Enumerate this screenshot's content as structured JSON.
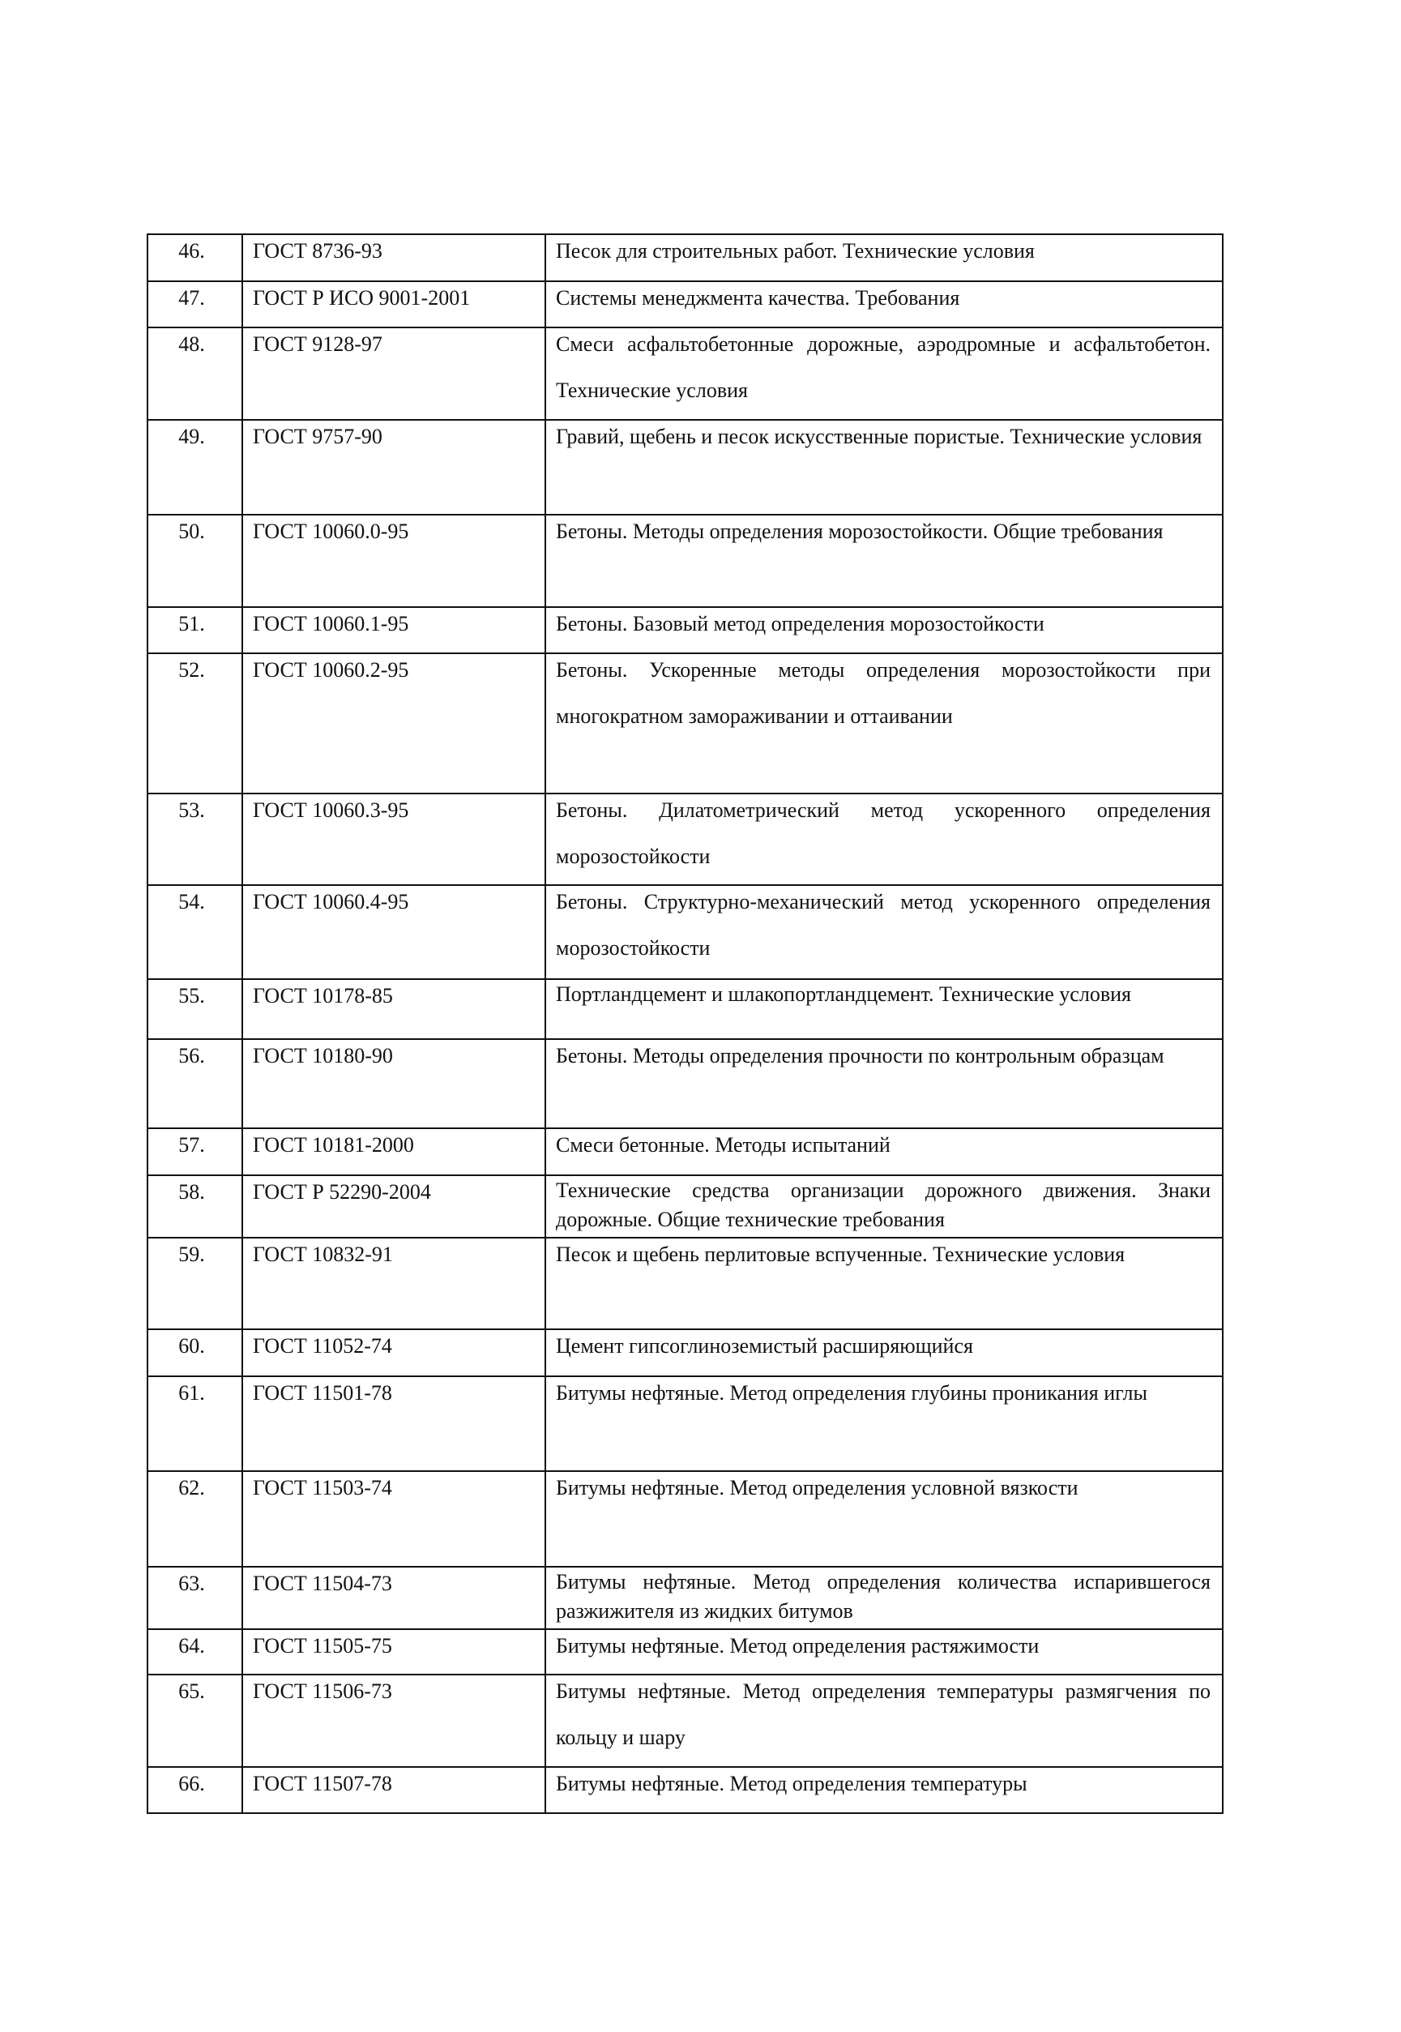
{
  "table": {
    "rows": [
      {
        "num": "46.",
        "code": "ГОСТ 8736-93",
        "desc": "Песок для строительных работ. Технические условия"
      },
      {
        "num": "47.",
        "code": "ГОСТ Р ИСО 9001-2001",
        "desc": "Системы менеджмента качества. Требования"
      },
      {
        "num": "48.",
        "code": "ГОСТ 9128-97",
        "desc": "Смеси асфальтобетонные дорожные, аэродромные и асфальтобетон. Технические условия"
      },
      {
        "num": "49.",
        "code": "ГОСТ 9757-90",
        "desc": "Гравий, щебень и песок искусственные пористые. Технические условия"
      },
      {
        "num": "50.",
        "code": "ГОСТ 10060.0-95",
        "desc": "Бетоны. Методы определения морозостойкости. Общие требования"
      },
      {
        "num": "51.",
        "code": "ГОСТ 10060.1-95",
        "desc": "Бетоны. Базовый метод определения морозостойкости"
      },
      {
        "num": "52.",
        "code": "ГОСТ 10060.2-95",
        "desc": "Бетоны. Ускоренные методы определения морозостойкости при многократном замораживании и оттаивании"
      },
      {
        "num": "53.",
        "code": "ГОСТ 10060.3-95",
        "desc": "Бетоны. Дилатометрический метод ускоренного определения морозостойкости"
      },
      {
        "num": "54.",
        "code": "ГОСТ 10060.4-95",
        "desc": "Бетоны. Структурно-механический метод ускоренного определения морозостойкости"
      },
      {
        "num": "55.",
        "code": "ГОСТ 10178-85",
        "desc": "Портландцемент и шлакопортландцемент. Технические условия"
      },
      {
        "num": "56.",
        "code": "ГОСТ 10180-90",
        "desc": "Бетоны. Методы определения прочности по контрольным образцам"
      },
      {
        "num": "57.",
        "code": "ГОСТ 10181-2000",
        "desc": "Смеси бетонные. Методы испытаний"
      },
      {
        "num": "58.",
        "code": "ГОСТ Р 52290-2004",
        "desc": "Технические средства организации дорожного движения. Знаки дорожные. Общие технические требования"
      },
      {
        "num": "59.",
        "code": "ГОСТ 10832-91",
        "desc": "Песок и щебень перлитовые вспученные. Технические условия"
      },
      {
        "num": "60.",
        "code": "ГОСТ 11052-74",
        "desc": "Цемент гипсоглиноземистый расширяющийся"
      },
      {
        "num": "61.",
        "code": "ГОСТ 11501-78",
        "desc": "Битумы нефтяные. Метод определения глубины проникания иглы"
      },
      {
        "num": "62.",
        "code": "ГОСТ 11503-74",
        "desc": "Битумы нефтяные. Метод определения условной вязкости"
      },
      {
        "num": "63.",
        "code": "ГОСТ 11504-73",
        "desc": "Битумы нефтяные. Метод определения количества испарившегося разжижителя из жидких битумов"
      },
      {
        "num": "64.",
        "code": "ГОСТ 11505-75",
        "desc": "Битумы нефтяные. Метод определения растяжимости"
      },
      {
        "num": "65.",
        "code": "ГОСТ 11506-73",
        "desc": "Битумы нефтяные. Метод определения температуры размягчения по кольцу и шару"
      },
      {
        "num": "66.",
        "code": "ГОСТ 11507-78",
        "desc": "Битумы нефтяные. Метод определения температуры"
      }
    ]
  }
}
